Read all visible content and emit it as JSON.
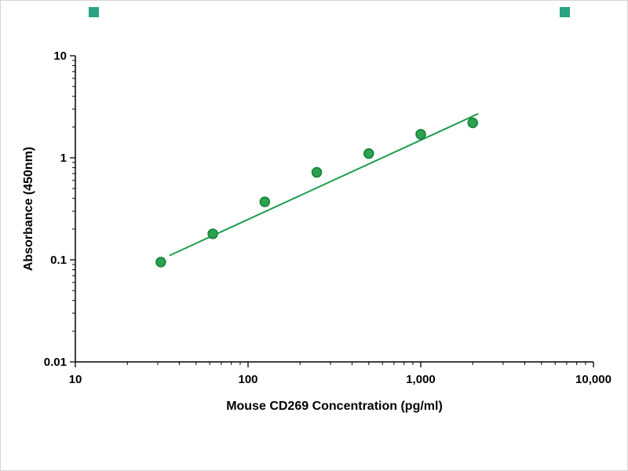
{
  "decorations": {
    "corner_marker_color": "#2aa384"
  },
  "chart_data": {
    "type": "scatter",
    "title": "",
    "x_axis": {
      "label": "Mouse CD269 Concentration (pg/ml)",
      "scale": "log",
      "min": 10,
      "max": 10000,
      "ticks": [
        {
          "v": 10,
          "label": "10"
        },
        {
          "v": 100,
          "label": "100"
        },
        {
          "v": 1000,
          "label": "1,000"
        },
        {
          "v": 10000,
          "label": "10,000"
        }
      ]
    },
    "y_axis": {
      "label": "Absorbance (450nm)",
      "scale": "log",
      "min": 0.01,
      "max": 10,
      "ticks": [
        {
          "v": 0.01,
          "label": "0.01"
        },
        {
          "v": 0.1,
          "label": "0.1"
        },
        {
          "v": 1,
          "label": "1"
        },
        {
          "v": 10,
          "label": "10"
        }
      ]
    },
    "grid": false,
    "legend": false,
    "styles": {
      "marker_fill": "#2ca24f",
      "marker_stroke": "#11813c",
      "line_color": "#1d9e50",
      "axis_color": "#000000"
    },
    "series": [
      {
        "name": "standard-curve-points",
        "type": "scatter",
        "x": [
          31.25,
          62.5,
          125,
          250,
          500,
          1000,
          2000
        ],
        "y": [
          0.095,
          0.18,
          0.37,
          0.72,
          1.1,
          1.7,
          2.2
        ]
      },
      {
        "name": "fit-line",
        "type": "line",
        "x": [
          35,
          2150
        ],
        "y": [
          0.11,
          2.7
        ]
      }
    ]
  }
}
